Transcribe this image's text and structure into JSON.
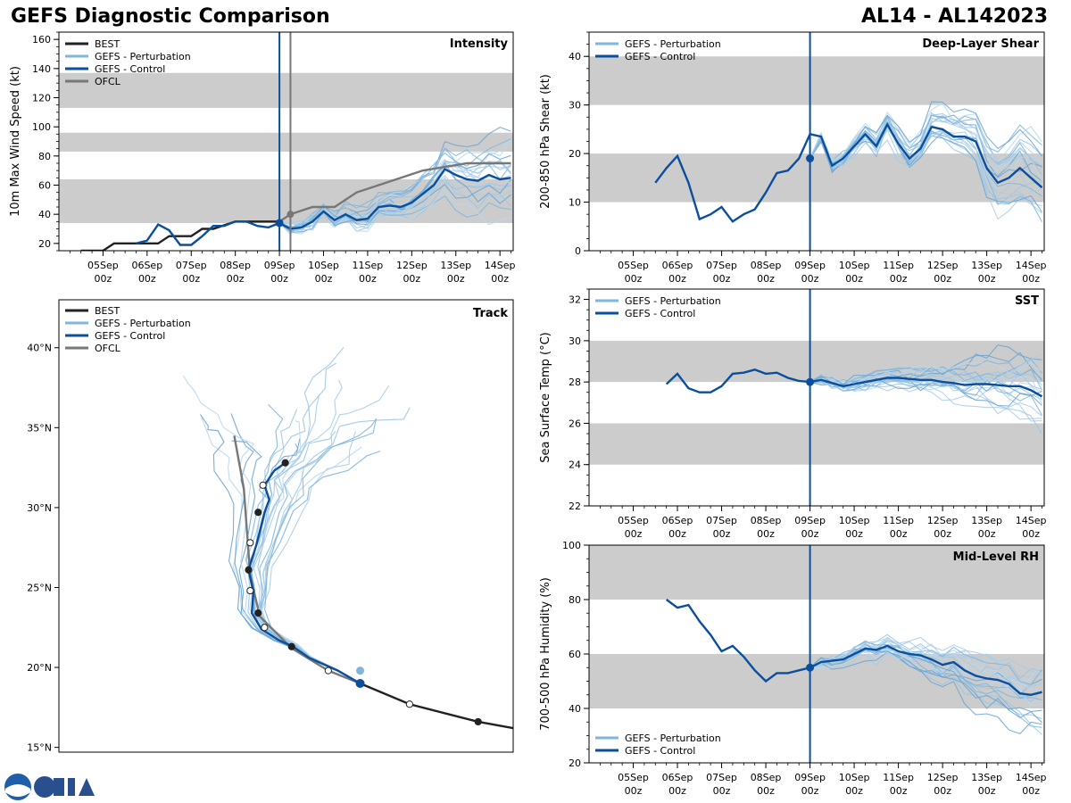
{
  "header": {
    "title": "GEFS Diagnostic Comparison",
    "storm_id": "AL14 - AL142023"
  },
  "colors": {
    "best": "#222222",
    "perturbation": "#7fb6dd",
    "control": "#0b4f9c",
    "ofcl": "#777777",
    "band": "#cccccc",
    "init_line": "#0b4f9c"
  },
  "time_ticks": [
    {
      "day": "05Sep",
      "hour": "00z",
      "t": 1
    },
    {
      "day": "06Sep",
      "hour": "00z",
      "t": 2
    },
    {
      "day": "07Sep",
      "hour": "00z",
      "t": 3
    },
    {
      "day": "08Sep",
      "hour": "00z",
      "t": 4
    },
    {
      "day": "09Sep",
      "hour": "00z",
      "t": 5
    },
    {
      "day": "10Sep",
      "hour": "00z",
      "t": 6
    },
    {
      "day": "11Sep",
      "hour": "00z",
      "t": 7
    },
    {
      "day": "12Sep",
      "hour": "00z",
      "t": 8
    },
    {
      "day": "13Sep",
      "hour": "00z",
      "t": 9
    },
    {
      "day": "14Sep",
      "hour": "00z",
      "t": 10
    }
  ],
  "chart_data": [
    {
      "id": "intensity",
      "type": "line",
      "panel_title": "Intensity",
      "ylabel": "10m Max Wind Speed (kt)",
      "xlim": [
        0.0,
        10.3
      ],
      "ylim": [
        15,
        165
      ],
      "yticks": [
        20,
        40,
        60,
        80,
        100,
        120,
        140,
        160
      ],
      "init_t": 5.0,
      "ofcl_t": 5.25,
      "bands": [
        [
          34,
          64
        ],
        [
          83,
          96
        ],
        [
          113,
          137
        ]
      ],
      "legend": [
        {
          "label": "BEST",
          "key": "best"
        },
        {
          "label": "GEFS - Perturbation",
          "key": "perturbation"
        },
        {
          "label": "GEFS - Control",
          "key": "control"
        },
        {
          "label": "OFCL",
          "key": "ofcl"
        }
      ],
      "best": {
        "t": [
          0.5,
          1.0,
          1.25,
          1.5,
          2.0,
          2.25,
          2.5,
          3.0,
          3.25,
          3.5,
          4.0,
          4.5,
          5.0
        ],
        "v": [
          15,
          15,
          20,
          20,
          20,
          20,
          25,
          25,
          30,
          30,
          35,
          35,
          35
        ]
      },
      "ofcl": {
        "t": [
          5.0,
          5.25,
          5.75,
          6.25,
          6.75,
          7.25,
          8.25,
          9.25,
          10.25
        ],
        "v": [
          35,
          40,
          45,
          45,
          55,
          60,
          70,
          75,
          75
        ]
      },
      "control": {
        "t": [
          1.75,
          2.0,
          2.25,
          2.5,
          2.75,
          3.0,
          3.25,
          3.5,
          3.75,
          4.0,
          4.25,
          4.5,
          4.75,
          5.0,
          5.25,
          5.5,
          5.75,
          6.0,
          6.25,
          6.5,
          6.75,
          7.0,
          7.25,
          7.5,
          7.75,
          8.0,
          8.25,
          8.5,
          8.75,
          9.0,
          9.25,
          9.5,
          9.75,
          10.0,
          10.25
        ],
        "v": [
          20,
          22,
          33,
          29,
          19,
          19,
          25,
          32,
          32,
          35,
          35,
          32,
          31,
          34,
          30,
          31,
          35,
          42,
          36,
          40,
          36,
          37,
          45,
          46,
          45,
          48,
          54,
          60,
          71,
          67,
          64,
          63,
          67,
          64,
          65
        ]
      },
      "perturbation_count": 20,
      "perturbation_start_t": 5.0,
      "perturbation_start_v": 34
    },
    {
      "id": "shear",
      "type": "line",
      "panel_title": "Deep-Layer Shear",
      "ylabel": "200-850 hPa Shear (kt)",
      "xlim": [
        0.0,
        10.3
      ],
      "ylim": [
        0,
        45
      ],
      "yticks": [
        0,
        10,
        20,
        30,
        40
      ],
      "init_t": 5.0,
      "bands": [
        [
          10,
          20
        ],
        [
          30,
          40
        ]
      ],
      "legend": [
        {
          "label": "GEFS - Perturbation",
          "key": "perturbation"
        },
        {
          "label": "GEFS - Control",
          "key": "control"
        }
      ],
      "control": {
        "t": [
          1.5,
          1.75,
          2.0,
          2.25,
          2.5,
          2.75,
          3.0,
          3.25,
          3.5,
          3.75,
          4.0,
          4.25,
          4.5,
          4.75,
          5.0,
          5.25,
          5.5,
          5.75,
          6.0,
          6.25,
          6.5,
          6.75,
          7.0,
          7.25,
          7.5,
          7.75,
          8.0,
          8.25,
          8.5,
          8.75,
          9.0,
          9.25,
          9.5,
          9.75,
          10.0,
          10.25
        ],
        "v": [
          14,
          17,
          19.5,
          14,
          6.5,
          7.5,
          9,
          6,
          7.5,
          8.5,
          12,
          16,
          16.5,
          19,
          24,
          23.5,
          17.5,
          19,
          21.5,
          24,
          21.5,
          26,
          22,
          19,
          21,
          25.5,
          25,
          23.5,
          23.5,
          22.5,
          17,
          14,
          15,
          17,
          15,
          13
        ]
      },
      "perturbation_count": 20,
      "perturbation_start_t": 5.0,
      "perturbation_start_v": 19
    },
    {
      "id": "sst",
      "type": "line",
      "panel_title": "SST",
      "ylabel": "Sea Surface Temp (°C)",
      "xlim": [
        0.0,
        10.3
      ],
      "ylim": [
        22,
        32.5
      ],
      "yticks": [
        22,
        24,
        26,
        28,
        30,
        32
      ],
      "init_t": 5.0,
      "bands": [
        [
          24,
          26
        ],
        [
          28,
          30
        ]
      ],
      "legend": [
        {
          "label": "GEFS - Perturbation",
          "key": "perturbation"
        },
        {
          "label": "GEFS - Control",
          "key": "control"
        }
      ],
      "control": {
        "t": [
          1.75,
          2.0,
          2.25,
          2.5,
          2.75,
          3.0,
          3.25,
          3.5,
          3.75,
          4.0,
          4.25,
          4.5,
          4.75,
          5.0,
          5.25,
          5.5,
          5.75,
          6.0,
          6.25,
          6.5,
          6.75,
          7.0,
          7.25,
          7.5,
          7.75,
          8.0,
          8.25,
          8.5,
          8.75,
          9.0,
          9.25,
          9.5,
          9.75,
          10.0,
          10.25
        ],
        "v": [
          27.9,
          28.4,
          27.7,
          27.5,
          27.5,
          27.8,
          28.4,
          28.45,
          28.6,
          28.4,
          28.45,
          28.2,
          28.05,
          28.0,
          28.1,
          27.95,
          27.8,
          27.9,
          28.0,
          28.1,
          28.2,
          28.2,
          28.15,
          28.1,
          28.1,
          28.0,
          27.95,
          27.85,
          27.9,
          27.9,
          27.85,
          27.8,
          27.8,
          27.6,
          27.3
        ]
      },
      "perturbation_count": 20,
      "perturbation_start_t": 5.0,
      "perturbation_start_v": 28.0
    },
    {
      "id": "rh",
      "type": "line",
      "panel_title": "Mid-Level RH",
      "ylabel": "700-500 hPa Humidity (%)",
      "xlim": [
        0.0,
        10.3
      ],
      "ylim": [
        20,
        100
      ],
      "yticks": [
        20,
        40,
        60,
        80,
        100
      ],
      "init_t": 5.0,
      "bands": [
        [
          40,
          60
        ],
        [
          80,
          100
        ]
      ],
      "legend": [
        {
          "label": "GEFS - Perturbation",
          "key": "perturbation"
        },
        {
          "label": "GEFS - Control",
          "key": "control"
        }
      ],
      "control": {
        "t": [
          1.75,
          2.0,
          2.25,
          2.5,
          2.75,
          3.0,
          3.25,
          3.5,
          3.75,
          4.0,
          4.25,
          4.5,
          4.75,
          5.0,
          5.25,
          5.5,
          5.75,
          6.0,
          6.25,
          6.5,
          6.75,
          7.0,
          7.25,
          7.5,
          7.75,
          8.0,
          8.25,
          8.5,
          8.75,
          9.0,
          9.25,
          9.5,
          9.75,
          10.0,
          10.25
        ],
        "v": [
          80,
          77,
          78,
          72,
          67,
          61,
          63,
          59,
          54,
          50,
          53,
          53,
          54,
          55,
          57,
          57.5,
          58,
          60,
          62,
          61.5,
          63,
          61,
          60,
          59.5,
          58,
          56,
          57,
          54,
          52,
          51,
          50.5,
          49,
          45.5,
          45,
          46
        ]
      },
      "perturbation_count": 20,
      "perturbation_start_t": 5.0,
      "perturbation_start_v": 55
    },
    {
      "id": "track",
      "type": "scatter",
      "panel_title": "Track",
      "ylabel": "",
      "lon_range": [
        -70.5,
        -42
      ],
      "lat_range": [
        14.7,
        43
      ],
      "lat_ticks": [
        {
          "lat": 15,
          "label": "15°N"
        },
        {
          "lat": 20,
          "label": "20°N"
        },
        {
          "lat": 25,
          "label": "25°N"
        },
        {
          "lat": 30,
          "label": "30°N"
        },
        {
          "lat": 35,
          "label": "35°N"
        },
        {
          "lat": 40,
          "label": "40°N"
        }
      ],
      "legend": [
        {
          "label": "BEST",
          "key": "best"
        },
        {
          "label": "GEFS - Perturbation",
          "key": "perturbation"
        },
        {
          "label": "GEFS - Control",
          "key": "control"
        },
        {
          "label": "OFCL",
          "key": "ofcl"
        }
      ],
      "best": {
        "lon": [
          -42,
          -44.2,
          -48.5,
          -51.6
        ],
        "lat": [
          16.2,
          16.6,
          17.7,
          19.0
        ]
      },
      "ofcl": {
        "lon": [
          -51.6,
          -53.6,
          -55.9,
          -57.9,
          -58.5,
          -58.9,
          -59.5
        ],
        "lat": [
          19.0,
          19.8,
          21.2,
          23.2,
          25.8,
          31.2,
          34.5
        ]
      },
      "control": {
        "lon": [
          -51.6,
          -53.0,
          -54.8,
          -55.8,
          -56.7,
          -57.8,
          -58.4,
          -58.3,
          -58.6,
          -58.1,
          -57.6,
          -57.3,
          -57.6,
          -57.0,
          -56.3
        ],
        "lat": [
          19.0,
          19.8,
          20.6,
          21.3,
          21.7,
          22.4,
          23.4,
          24.7,
          26.1,
          27.7,
          29.7,
          30.5,
          31.4,
          32.3,
          32.8
        ]
      },
      "markers": [
        {
          "lon": -44.2,
          "lat": 16.6,
          "fill": "dark"
        },
        {
          "lon": -48.5,
          "lat": 17.7,
          "fill": "white"
        },
        {
          "lon": -53.6,
          "lat": 19.8,
          "fill": "white"
        },
        {
          "lon": -55.9,
          "lat": 21.3,
          "fill": "dark"
        },
        {
          "lon": -57.6,
          "lat": 22.5,
          "fill": "white"
        },
        {
          "lon": -58.0,
          "lat": 23.4,
          "fill": "dark"
        },
        {
          "lon": -58.5,
          "lat": 24.8,
          "fill": "white"
        },
        {
          "lon": -58.6,
          "lat": 26.1,
          "fill": "dark"
        },
        {
          "lon": -58.5,
          "lat": 27.8,
          "fill": "white"
        },
        {
          "lon": -58.0,
          "lat": 29.7,
          "fill": "dark"
        },
        {
          "lon": -57.7,
          "lat": 31.4,
          "fill": "white"
        },
        {
          "lon": -56.3,
          "lat": 32.8,
          "fill": "dark"
        }
      ],
      "perturbation_count": 22
    }
  ]
}
